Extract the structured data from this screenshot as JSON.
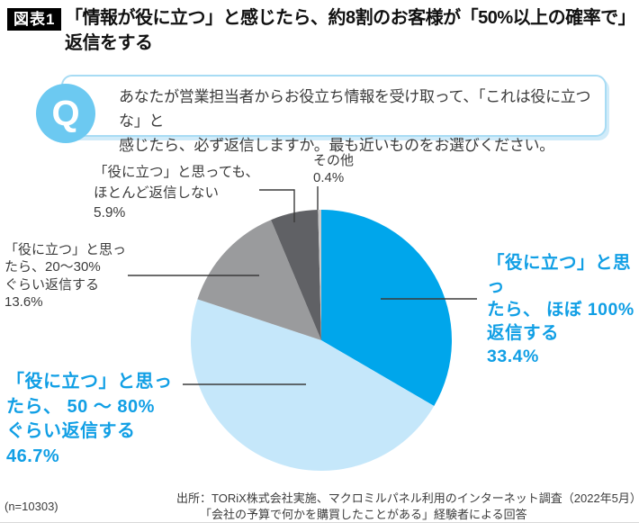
{
  "header": {
    "tag": "図表1",
    "title_line1": "「情報が役に立つ」と感じたら、約8割のお客様が「50%以上の確率で」",
    "title_line2": "返信をする"
  },
  "question": {
    "icon": "Q",
    "line1": "あなたが営業担当者からお役立ち情報を受け取って、「これは役に立つな」と",
    "line2": "感じたら、必ず返信しますか。最も近いものをお選びください。"
  },
  "chart_data": {
    "type": "pie",
    "title": "「情報が役に立つ」と感じたら、約8割のお客様が「50%以上の確率で」返信をする",
    "sample_size_label": "(n=10303)",
    "start_angle": "12-oclock",
    "direction": "clockwise",
    "slices": [
      {
        "label": "「役に立つ」と思ったら、ほぼ100%返信する",
        "value_pct": 33.4,
        "color": "#00a6eb"
      },
      {
        "label": "「役に立つ」と思ったら、50〜80%ぐらい返信する",
        "value_pct": 46.7,
        "color": "#c5e7fa"
      },
      {
        "label": "「役に立つ」と思ったら、20〜30%ぐらい返信する",
        "value_pct": 13.6,
        "color": "#9a9b9d"
      },
      {
        "label": "「役に立つ」と思っても、ほとんど返信しない",
        "value_pct": 5.9,
        "color": "#606165"
      },
      {
        "label": "その他",
        "value_pct": 0.4,
        "color": "#c8c9ca"
      }
    ]
  },
  "labels": {
    "p100": {
      "lines": [
        "「役に立つ」と思っ",
        "たら、 ほぼ 100%",
        "返信する",
        "33.4%"
      ]
    },
    "p5080": {
      "lines": [
        "「役に立つ」と思っ",
        "たら、 50 〜 80%",
        "ぐらい返信する",
        "46.7%"
      ]
    },
    "p2030": {
      "lines": [
        "「役に立つ」と思っ",
        "たら、20〜30%",
        "ぐらい返信する",
        "13.6%"
      ]
    },
    "rarely": {
      "lines": [
        "「役に立つ」と思っても、",
        "ほとんど返信しない",
        "5.9%"
      ]
    },
    "other": {
      "lines": [
        "その他",
        "0.4%"
      ]
    }
  },
  "footer": {
    "n": "(n=10303)",
    "source_line1": "出所：TORiX株式会社実施、マクロミルパネル利用のインターネット調査（2022年5月）",
    "source_line2": "「会社の予算で何かを購買したことがある」経験者による回答"
  },
  "colors": {
    "accent_blue": "#119fe5",
    "q_circle_blue": "#6cc9f1",
    "q_border_blue": "#a8dcf4",
    "q_shadow_blue": "#d0ebf9",
    "badge_bg": "#000000",
    "text_dark": "#3b3b3b"
  }
}
